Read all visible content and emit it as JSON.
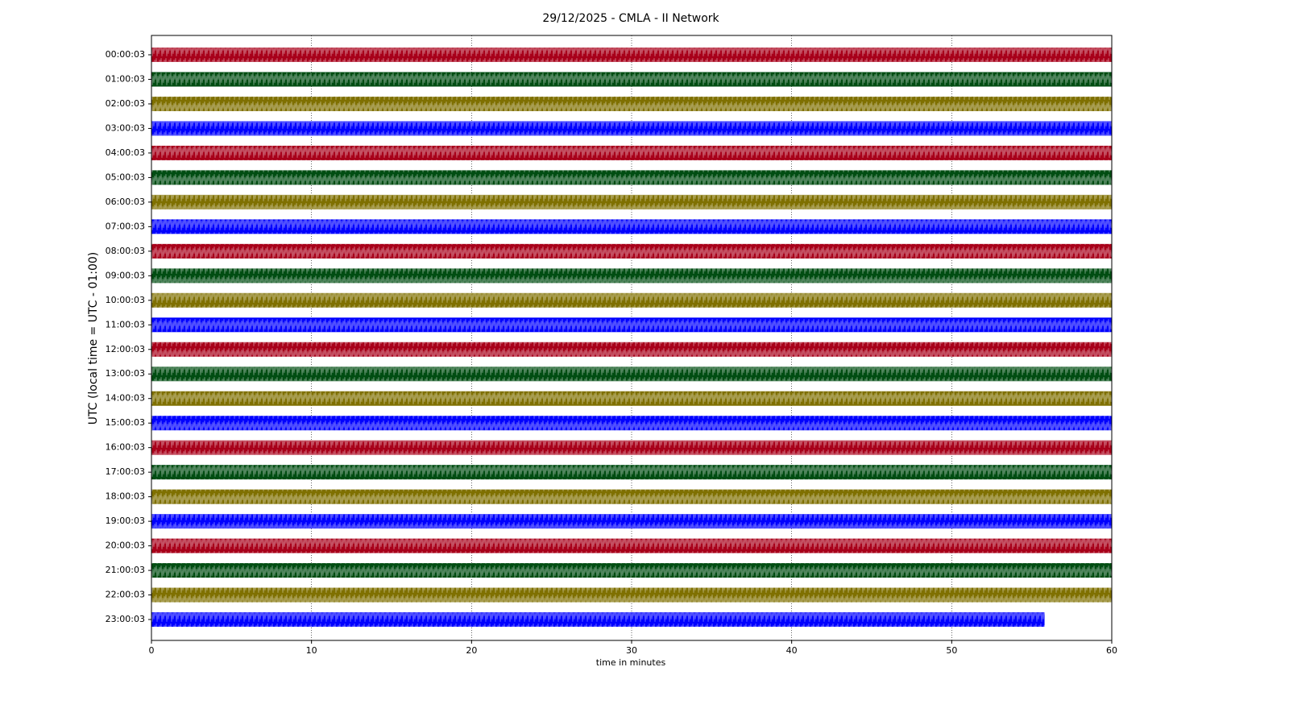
{
  "chart_data": {
    "type": "helicorder",
    "title": "29/12/2025 - CMLA - II Network",
    "x_label": "time in minutes",
    "y_label": "UTC (local time = UTC - 01:00)",
    "xlim": [
      0,
      60
    ],
    "xticks": [
      0,
      10,
      20,
      30,
      40,
      50,
      60
    ],
    "grid": true,
    "rows": [
      {
        "label": "00:00:03",
        "color": "#a8001a",
        "end": 60
      },
      {
        "label": "01:00:03",
        "color": "#004d12",
        "end": 60
      },
      {
        "label": "02:00:03",
        "color": "#7f7000",
        "end": 60
      },
      {
        "label": "03:00:03",
        "color": "#0000ff",
        "end": 60
      },
      {
        "label": "04:00:03",
        "color": "#a8001a",
        "end": 60
      },
      {
        "label": "05:00:03",
        "color": "#004d12",
        "end": 60
      },
      {
        "label": "06:00:03",
        "color": "#7f7000",
        "end": 60
      },
      {
        "label": "07:00:03",
        "color": "#0000ff",
        "end": 60
      },
      {
        "label": "08:00:03",
        "color": "#a8001a",
        "end": 60
      },
      {
        "label": "09:00:03",
        "color": "#004d12",
        "end": 60
      },
      {
        "label": "10:00:03",
        "color": "#7f7000",
        "end": 60
      },
      {
        "label": "11:00:03",
        "color": "#0000ff",
        "end": 60
      },
      {
        "label": "12:00:03",
        "color": "#a8001a",
        "end": 60
      },
      {
        "label": "13:00:03",
        "color": "#004d12",
        "end": 60
      },
      {
        "label": "14:00:03",
        "color": "#7f7000",
        "end": 60
      },
      {
        "label": "15:00:03",
        "color": "#0000ff",
        "end": 60
      },
      {
        "label": "16:00:03",
        "color": "#a8001a",
        "end": 60
      },
      {
        "label": "17:00:03",
        "color": "#004d12",
        "end": 60
      },
      {
        "label": "18:00:03",
        "color": "#7f7000",
        "end": 60
      },
      {
        "label": "19:00:03",
        "color": "#0000ff",
        "end": 60
      },
      {
        "label": "20:00:03",
        "color": "#a8001a",
        "end": 60
      },
      {
        "label": "21:00:03",
        "color": "#004d12",
        "end": 60
      },
      {
        "label": "22:00:03",
        "color": "#7f7000",
        "end": 60
      },
      {
        "label": "23:00:03",
        "color": "#0000ff",
        "end": 55.8
      }
    ]
  }
}
